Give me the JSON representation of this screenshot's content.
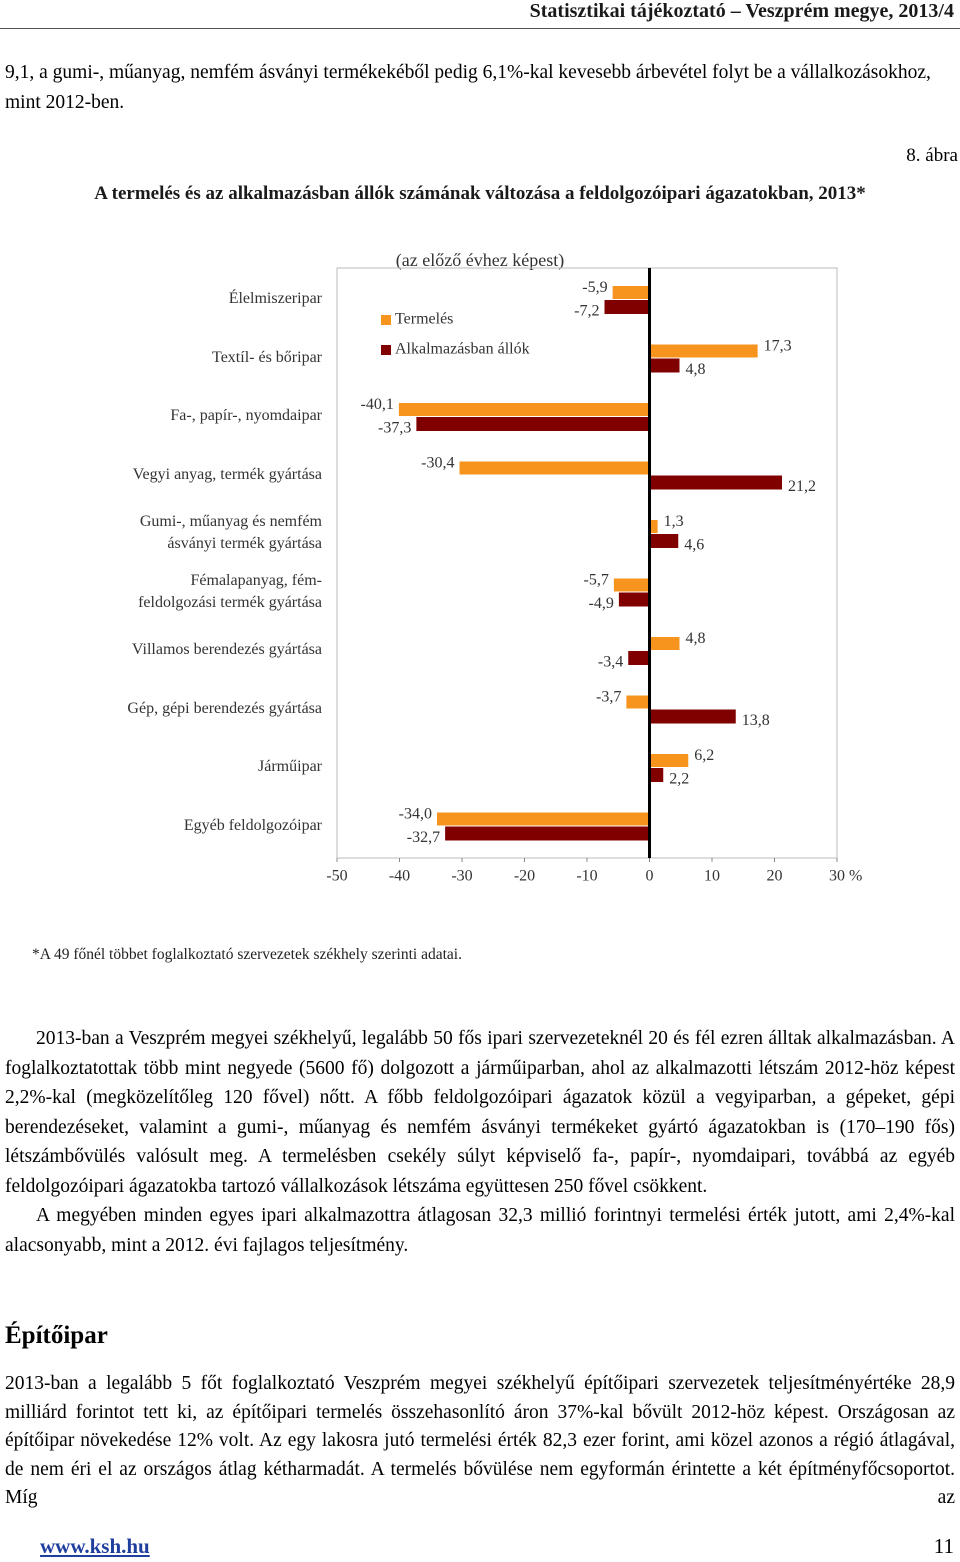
{
  "header": {
    "title": "Statisztikai tájékoztató – Veszprém megye, 2013/4"
  },
  "intro": "9,1, a gumi-, műanyag, nemfém ásványi termékekéből pedig 6,1%-kal kevesebb árbevétel folyt be a vállalkozásokhoz, mint 2012-ben.",
  "figure_number": "8. ábra",
  "chart_data": {
    "type": "bar",
    "orientation": "horizontal",
    "title": "A termelés és az alkalmazásban állók számának változása a feldolgozóipari ágazatokban, 2013*",
    "subtitle": "(az előző évhez képest)",
    "categories": [
      "Élelmiszeripar",
      "Textíl- és bőripar",
      "Fa-, papír-, nyomdaipar",
      "Vegyi anyag, termék gyártása",
      "Gumi-, műanyag és nemfém\násványi termék gyártása",
      "Fémalapanyag, fém-\nfeldolgozási termék gyártása",
      "Villamos berendezés gyártása",
      "Gép, gépi berendezés gyártása",
      "Járműipar",
      "Egyéb feldolgozóipar"
    ],
    "series": [
      {
        "name": "Termelés",
        "color": "#f7941d",
        "values": [
          -5.9,
          17.3,
          -40.1,
          -30.4,
          1.3,
          -5.7,
          4.8,
          -3.7,
          6.2,
          -34.0
        ],
        "value_labels": [
          "-5,9",
          "17,3",
          "-40,1",
          "-30,4",
          "1,3",
          "-5,7",
          "4,8",
          "-3,7",
          "6,2",
          "-34,0"
        ]
      },
      {
        "name": "Alkalmazásban állók",
        "color": "#800000",
        "values": [
          -7.2,
          4.8,
          -37.3,
          21.2,
          4.6,
          -4.9,
          -3.4,
          13.8,
          2.2,
          -32.7
        ],
        "value_labels": [
          "-7,2",
          "4,8",
          "-37,3",
          "21,2",
          "4,6",
          "-4,9",
          "-3,4",
          "13,8",
          "2,2",
          "-32,7"
        ]
      }
    ],
    "xlim": [
      -50,
      30
    ],
    "xticks": [
      -50,
      -40,
      -30,
      -20,
      -10,
      0,
      10,
      20,
      {
        "value": 30,
        "label": "30 %"
      }
    ],
    "legend": "upper left"
  },
  "footnote": "*A 49 főnél többet foglalkoztató szervezetek székhely szerinti adatai.",
  "paragraphs": [
    "2013-ban a Veszprém megyei székhelyű, legalább 50 fős ipari szervezeteknél 20 és fél ezren álltak alkalmazásban. A foglalkoztatottak több mint negyede (5600 fő) dolgozott a járműiparban, ahol az alkalmazotti létszám 2012-höz képest 2,2%-kal (megközelítőleg 120 fővel) nőtt. A főbb feldolgozóipari ágazatok közül a vegyiparban, a gépeket, gépi berendezéseket, valamint a gumi-, műanyag és nemfém ásványi termékeket gyártó ágazatokban is (170–190 fős) létszámbővülés valósult meg. A termelésben csekély súlyt képviselő fa-, papír-, nyomdaipari, továbbá az egyéb feldolgozóipari ágazatokba tartozó vállalkozások létszáma együttesen 250 fővel csökkent.",
    "A megyében minden egyes ipari alkalmazottra átlagosan 32,3 millió forintnyi termelési érték jutott, ami 2,4%-kal alacsonyabb, mint a 2012. évi fajlagos teljesítmény."
  ],
  "section_heading": "Építőipar",
  "section_paragraph": "2013-ban a legalább 5 főt foglalkoztató Veszprém megyei székhelyű építőipari szervezetek teljesítményértéke 28,9 milliárd forintot tett ki, az építőipari termelés összehasonlító áron 37%-kal bővült 2012-höz képest. Országosan az építőipar növekedése 12% volt. Az egy lakosra jutó termelési érték 82,3 ezer forint, ami közel azonos a régió átlagával, de nem éri el az országos átlag kétharmadát. A termelés bővülése nem egyformán érintette a két építményfőcsoportot. Míg az",
  "footer": {
    "url": "www.ksh.hu",
    "page": "11"
  }
}
